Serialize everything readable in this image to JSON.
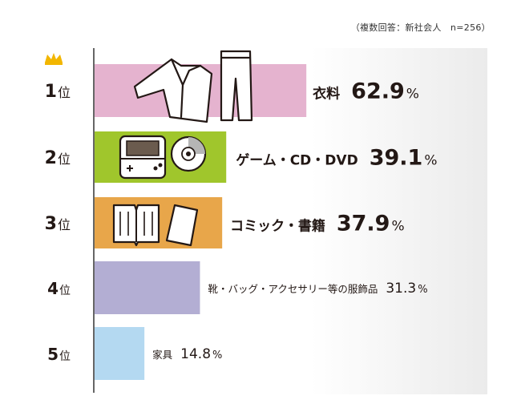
{
  "chart_data": {
    "type": "bar",
    "orientation": "horizontal",
    "note": "（複数回答：新社会人　n=256）",
    "ranks": [
      "1",
      "2",
      "3",
      "4",
      "5"
    ],
    "rank_suffix": "位",
    "categories": [
      "衣料",
      "ゲーム・CD・DVD",
      "コミック・書籍",
      "靴・バッグ・アクセサリー等の服飾品",
      "家具"
    ],
    "values": [
      62.9,
      39.1,
      37.9,
      31.3,
      14.8
    ],
    "value_labels": [
      "62.9",
      "39.1",
      "37.9",
      "31.3",
      "14.8"
    ],
    "unit": "%",
    "colors": [
      "#e5b3cf",
      "#a0c62c",
      "#e8a64a",
      "#b3aed3",
      "#b4d9f1"
    ],
    "icons": [
      "suit-icon",
      "game-console-and-disc-icon",
      "books-icon",
      null,
      null
    ],
    "crown_icon": "crown-icon",
    "crown_color": "#f2b600",
    "axis_color": "#333333",
    "legend": "none",
    "grid": false
  }
}
